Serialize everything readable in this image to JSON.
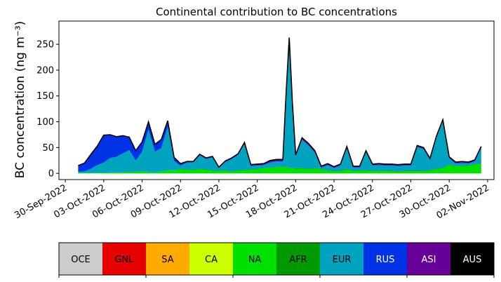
{
  "chart_data": {
    "type": "area",
    "stacked": true,
    "title": "Continental contribution to BC concentrations",
    "ylabel": "BC concentration (ng m⁻³)",
    "xlabel": "",
    "ylim": [
      -12,
      295
    ],
    "xlim": [
      "2022-09-29T12:00",
      "2022-11-02T12:00"
    ],
    "yticks": [
      0,
      50,
      100,
      150,
      200,
      250
    ],
    "xticks": [
      "30-Sep-2022",
      "03-Oct-2022",
      "06-Oct-2022",
      "09-Oct-2022",
      "12-Oct-2022",
      "15-Oct-2022",
      "18-Oct-2022",
      "21-Oct-2022",
      "24-Oct-2022",
      "27-Oct-2022",
      "30-Oct-2022",
      "02-Nov-2022"
    ],
    "grid": false,
    "x": [
      "2022-10-01T00:00",
      "2022-10-01T12:00",
      "2022-10-02T00:00",
      "2022-10-02T12:00",
      "2022-10-03T00:00",
      "2022-10-03T12:00",
      "2022-10-04T00:00",
      "2022-10-04T12:00",
      "2022-10-05T00:00",
      "2022-10-05T12:00",
      "2022-10-06T00:00",
      "2022-10-06T12:00",
      "2022-10-07T00:00",
      "2022-10-07T12:00",
      "2022-10-08T00:00",
      "2022-10-08T12:00",
      "2022-10-09T00:00",
      "2022-10-09T12:00",
      "2022-10-10T00:00",
      "2022-10-10T12:00",
      "2022-10-11T00:00",
      "2022-10-11T12:00",
      "2022-10-12T00:00",
      "2022-10-12T12:00",
      "2022-10-13T00:00",
      "2022-10-13T12:00",
      "2022-10-14T00:00",
      "2022-10-14T12:00",
      "2022-10-15T00:00",
      "2022-10-15T12:00",
      "2022-10-16T00:00",
      "2022-10-16T12:00",
      "2022-10-17T00:00",
      "2022-10-17T06:00",
      "2022-10-17T12:00",
      "2022-10-17T18:00",
      "2022-10-18T00:00",
      "2022-10-18T12:00",
      "2022-10-19T00:00",
      "2022-10-19T12:00",
      "2022-10-20T00:00",
      "2022-10-20T12:00",
      "2022-10-21T00:00",
      "2022-10-21T12:00",
      "2022-10-22T00:00",
      "2022-10-22T12:00",
      "2022-10-23T00:00",
      "2022-10-23T12:00",
      "2022-10-24T00:00",
      "2022-10-24T12:00",
      "2022-10-25T00:00",
      "2022-10-25T12:00",
      "2022-10-26T00:00",
      "2022-10-26T12:00",
      "2022-10-27T00:00",
      "2022-10-27T12:00",
      "2022-10-28T00:00",
      "2022-10-28T12:00",
      "2022-10-29T00:00",
      "2022-10-29T12:00",
      "2022-10-30T00:00",
      "2022-10-30T12:00",
      "2022-10-31T00:00",
      "2022-10-31T12:00",
      "2022-11-01T00:00",
      "2022-11-01T12:00"
    ],
    "series": [
      {
        "name": "OCE",
        "color": "#cccccc",
        "values": [
          0,
          0,
          0,
          0,
          0,
          0,
          0,
          0,
          0,
          0,
          0,
          0,
          0,
          0,
          0,
          0,
          0,
          0,
          0,
          0,
          0,
          0,
          0,
          0,
          0,
          0,
          0,
          0,
          0,
          0,
          0,
          0,
          0,
          0,
          0,
          0,
          0,
          0,
          0,
          0,
          0,
          0,
          0,
          0,
          0,
          0,
          0,
          0,
          0,
          0,
          0,
          0,
          0,
          0,
          0,
          0,
          0,
          0,
          0,
          0,
          0,
          0,
          0,
          0,
          0,
          0
        ]
      },
      {
        "name": "GNL",
        "color": "#e60000",
        "values": [
          0,
          0,
          0,
          0,
          0,
          0,
          0,
          0,
          0,
          0,
          0,
          0,
          0,
          0,
          0,
          0,
          0,
          0,
          0,
          0,
          0,
          0,
          0,
          0,
          0,
          0,
          0,
          0,
          0,
          0,
          0,
          0,
          0,
          0,
          0,
          0,
          0,
          0,
          0,
          0,
          0,
          0,
          0,
          0,
          0,
          0,
          0,
          0,
          0,
          0,
          0,
          0,
          0,
          0,
          0,
          0,
          0,
          0,
          0,
          0,
          0,
          0,
          0,
          0,
          0,
          0
        ]
      },
      {
        "name": "SA",
        "color": "#ffaa00",
        "values": [
          0,
          0,
          0,
          0,
          0,
          0,
          0,
          0,
          0,
          0,
          0,
          0,
          0,
          0,
          0,
          0,
          0,
          0,
          0,
          0,
          0,
          0,
          0,
          0,
          0,
          0,
          0,
          0,
          0,
          0,
          0,
          0,
          0,
          0,
          0,
          0,
          0,
          0,
          0,
          0,
          0,
          0,
          0,
          0,
          0,
          0,
          0,
          0,
          0,
          0,
          0,
          0,
          0,
          0,
          0,
          0,
          0,
          0,
          0,
          0,
          0,
          0,
          0,
          0,
          0,
          0
        ]
      },
      {
        "name": "CA",
        "color": "#ccff00",
        "values": [
          0,
          0,
          0,
          0,
          0,
          0,
          0,
          0,
          0,
          0,
          0,
          0,
          0,
          0,
          0,
          0,
          0,
          0,
          0,
          0,
          0,
          0,
          0,
          0,
          0,
          0,
          0,
          0,
          0,
          0,
          0,
          0,
          0,
          0,
          0,
          0,
          0,
          0,
          0,
          0,
          0,
          0,
          0,
          0,
          0,
          0,
          0,
          0,
          0,
          0,
          0,
          0,
          0,
          0,
          0,
          0,
          0,
          0,
          0,
          0,
          0,
          0,
          0,
          0,
          0,
          0
        ]
      },
      {
        "name": "NA",
        "color": "#00e000",
        "values": [
          1,
          1,
          1,
          1,
          1,
          2,
          2,
          2,
          3,
          3,
          4,
          3,
          2,
          4,
          6,
          6,
          8,
          7,
          6,
          8,
          7,
          5,
          4,
          6,
          3,
          5,
          6,
          7,
          8,
          10,
          10,
          12,
          12,
          12,
          10,
          10,
          9,
          9,
          8,
          9,
          8,
          5,
          4,
          4,
          8,
          4,
          5,
          5,
          4,
          5,
          4,
          4,
          3,
          4,
          4,
          4,
          4,
          5,
          8,
          10,
          16,
          14,
          14,
          15,
          17,
          18
        ]
      },
      {
        "name": "AFR",
        "color": "#009900",
        "values": [
          0,
          0,
          0,
          0,
          0,
          0,
          0,
          0,
          0,
          0,
          0,
          0,
          0,
          0,
          0,
          0,
          1,
          1,
          1,
          1,
          1,
          1,
          1,
          1,
          1,
          1,
          1,
          1,
          1,
          1,
          1,
          1,
          1,
          1,
          1,
          1,
          1,
          1,
          1,
          1,
          1,
          1,
          1,
          1,
          1,
          1,
          1,
          1,
          1,
          1,
          1,
          1,
          1,
          1,
          1,
          1,
          1,
          1,
          1,
          1,
          1,
          1,
          1,
          1,
          1,
          1
        ]
      },
      {
        "name": "EUR",
        "color": "#00a3bf",
        "values": [
          2,
          3,
          8,
          15,
          20,
          28,
          30,
          37,
          42,
          22,
          38,
          82,
          40,
          45,
          84,
          18,
          6,
          13,
          14,
          26,
          20,
          25,
          5,
          15,
          24,
          30,
          50,
          6,
          6,
          5,
          10,
          10,
          10,
          138,
          248,
          120,
          22,
          55,
          45,
          30,
          2,
          10,
          5,
          10,
          40,
          6,
          5,
          35,
          10,
          10,
          10,
          10,
          10,
          10,
          10,
          46,
          42,
          20,
          60,
          90,
          12,
          4,
          5,
          3,
          5,
          30
        ]
      },
      {
        "name": "RUS",
        "color": "#0033e6",
        "values": [
          11,
          15,
          27,
          36,
          52,
          44,
          38,
          33,
          24,
          18,
          18,
          14,
          13,
          16,
          11,
          6,
          3,
          1,
          1,
          1,
          1,
          1,
          1,
          1,
          1,
          1,
          1,
          1,
          1,
          1,
          1,
          1,
          1,
          1,
          1,
          1,
          1,
          1,
          1,
          1,
          1,
          1,
          1,
          1,
          1,
          1,
          1,
          1,
          1,
          1,
          1,
          1,
          1,
          1,
          1,
          1,
          1,
          1,
          1,
          1,
          1,
          1,
          1,
          1,
          1,
          1
        ]
      },
      {
        "name": "ASI",
        "color": "#660099",
        "values": [
          1,
          1,
          1,
          1,
          1,
          1,
          1,
          1,
          1,
          1,
          1,
          1,
          1,
          1,
          1,
          1,
          1,
          1,
          1,
          1,
          1,
          1,
          1,
          1,
          1,
          1,
          2,
          2,
          2,
          2,
          3,
          3,
          3,
          3,
          3,
          3,
          3,
          3,
          3,
          3,
          2,
          2,
          2,
          2,
          2,
          2,
          2,
          2,
          2,
          2,
          2,
          2,
          2,
          2,
          2,
          2,
          2,
          2,
          2,
          2,
          2,
          2,
          2,
          2,
          2,
          2
        ]
      },
      {
        "name": "AUS",
        "color": "#000000",
        "values": [
          0,
          0,
          0,
          0,
          0,
          0,
          0,
          0,
          0,
          0,
          0,
          0,
          0,
          0,
          0,
          0,
          0,
          0,
          0,
          0,
          0,
          0,
          0,
          0,
          0,
          0,
          0,
          0,
          0,
          0,
          0,
          0,
          0,
          0,
          0,
          0,
          0,
          0,
          0,
          0,
          0,
          0,
          0,
          0,
          0,
          0,
          0,
          0,
          0,
          0,
          0,
          0,
          0,
          0,
          0,
          0,
          0,
          0,
          0,
          0,
          0,
          0,
          0,
          0,
          0,
          0
        ]
      }
    ]
  }
}
